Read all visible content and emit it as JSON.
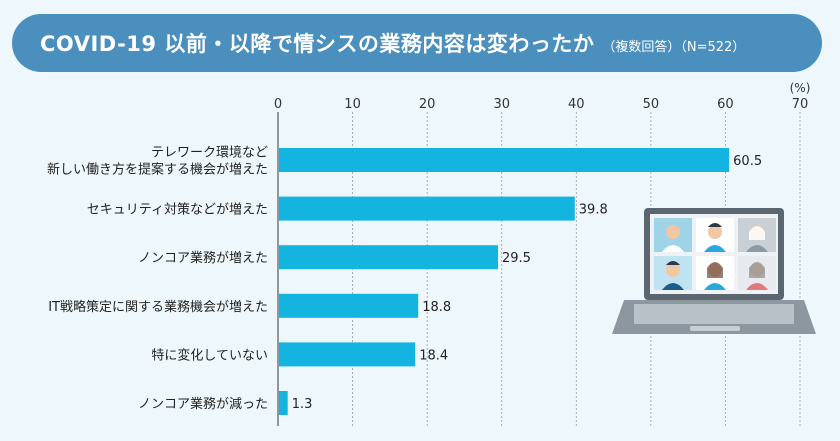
{
  "title": {
    "main": "COVID-19 以前・以降で情シスの業務内容は変わったか",
    "sub": "（複数回答）（N=522）"
  },
  "colors": {
    "bar": "#14b4e0",
    "title_bg": "#4a8fbd",
    "background": "#eef8fc"
  },
  "chart_data": {
    "type": "bar",
    "orientation": "horizontal",
    "unit_label": "(%)",
    "xlim": [
      0,
      70
    ],
    "ticks": [
      0,
      10,
      20,
      30,
      40,
      50,
      60,
      70
    ],
    "categories": [
      [
        "テレワーク環境など",
        "新しい働き方を提案する機会が増えた"
      ],
      [
        "セキュリティ対策などが増えた"
      ],
      [
        "ノンコア業務が増えた"
      ],
      [
        "IT戦略策定に関する業務機会が増えた"
      ],
      [
        "特に変化していない"
      ],
      [
        "ノンコア業務が減った"
      ]
    ],
    "values": [
      60.5,
      39.8,
      29.5,
      18.8,
      18.4,
      1.3
    ],
    "grid": true
  },
  "illustration": {
    "laptop-icon": "laptop with video conference of six people"
  }
}
